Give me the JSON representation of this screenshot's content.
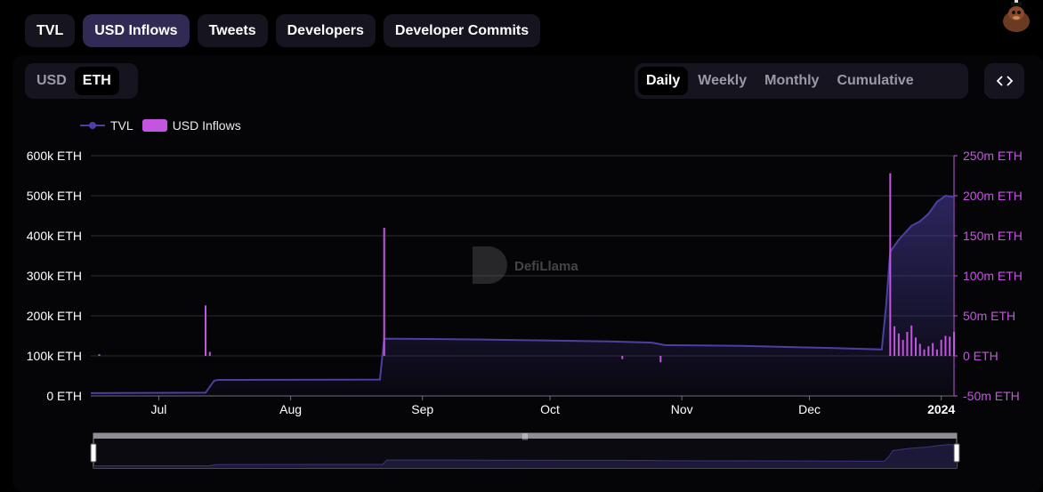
{
  "top_tabs": [
    {
      "label": "TVL",
      "active": false
    },
    {
      "label": "USD Inflows",
      "active": true
    },
    {
      "label": "Tweets",
      "active": false
    },
    {
      "label": "Developers",
      "active": false
    },
    {
      "label": "Developer Commits",
      "active": false
    }
  ],
  "denomination": {
    "options": [
      "USD",
      "ETH"
    ],
    "selected": "ETH"
  },
  "periods": {
    "options": [
      "Daily",
      "Weekly",
      "Monthly",
      "Cumulative"
    ],
    "selected": "Daily"
  },
  "embed_icon": "code-brackets-icon",
  "avatar_icon": "user-avatar-icon",
  "watermark": "DefiLlama",
  "colors": {
    "tvl": "#4c3fa3",
    "inflows": "#c455e0",
    "grid": "#2a2a33",
    "axis_left": "#ffffff",
    "axis_right": "#c455e0"
  },
  "chart_data": {
    "type": "line+bar",
    "legend": [
      {
        "name": "TVL",
        "marker": "line"
      },
      {
        "name": "USD Inflows",
        "marker": "bar"
      }
    ],
    "legend_position": "top-left",
    "grid": true,
    "x_range": [
      "2023-06-15",
      "2024-01-04"
    ],
    "x_ticks": [
      {
        "date": "2023-07-01",
        "label": "Jul",
        "bold": false
      },
      {
        "date": "2023-08-01",
        "label": "Aug",
        "bold": false
      },
      {
        "date": "2023-09-01",
        "label": "Sep",
        "bold": false
      },
      {
        "date": "2023-10-01",
        "label": "Oct",
        "bold": false
      },
      {
        "date": "2023-11-01",
        "label": "Nov",
        "bold": false
      },
      {
        "date": "2023-12-01",
        "label": "Dec",
        "bold": false
      },
      {
        "date": "2024-01-01",
        "label": "2024",
        "bold": true
      }
    ],
    "left_axis": {
      "unit": "ETH",
      "ylim": [
        0,
        600000
      ],
      "ticks": [
        {
          "v": 0,
          "label": "0 ETH"
        },
        {
          "v": 100000,
          "label": "100k ETH"
        },
        {
          "v": 200000,
          "label": "200k ETH"
        },
        {
          "v": 300000,
          "label": "300k ETH"
        },
        {
          "v": 400000,
          "label": "400k ETH"
        },
        {
          "v": 500000,
          "label": "500k ETH"
        },
        {
          "v": 600000,
          "label": "600k ETH"
        }
      ]
    },
    "right_axis": {
      "unit": "ETH",
      "ylim": [
        -50000000,
        250000000
      ],
      "ticks": [
        {
          "v": -50000000,
          "label": "-50m ETH"
        },
        {
          "v": 0,
          "label": "0 ETH"
        },
        {
          "v": 50000000,
          "label": "50m ETH"
        },
        {
          "v": 100000000,
          "label": "100m ETH"
        },
        {
          "v": 150000000,
          "label": "150m ETH"
        },
        {
          "v": 200000000,
          "label": "200m ETH"
        },
        {
          "v": 250000000,
          "label": "250m ETH"
        }
      ]
    },
    "series": [
      {
        "name": "TVL",
        "type": "area",
        "axis": "left",
        "points": [
          [
            "2023-06-15",
            7000
          ],
          [
            "2023-07-12",
            8000
          ],
          [
            "2023-07-14",
            38000
          ],
          [
            "2023-07-15",
            40000
          ],
          [
            "2023-08-22",
            41000
          ],
          [
            "2023-08-23",
            143000
          ],
          [
            "2023-09-15",
            141000
          ],
          [
            "2023-10-15",
            136000
          ],
          [
            "2023-10-25",
            133000
          ],
          [
            "2023-10-28",
            127000
          ],
          [
            "2023-11-15",
            125000
          ],
          [
            "2023-12-05",
            120000
          ],
          [
            "2023-12-18",
            116000
          ],
          [
            "2023-12-19",
            220000
          ],
          [
            "2023-12-20",
            360000
          ],
          [
            "2023-12-22",
            390000
          ],
          [
            "2023-12-25",
            425000
          ],
          [
            "2023-12-27",
            436000
          ],
          [
            "2023-12-29",
            455000
          ],
          [
            "2023-12-31",
            485000
          ],
          [
            "2024-01-02",
            500000
          ],
          [
            "2024-01-04",
            497000
          ]
        ]
      },
      {
        "name": "USD Inflows",
        "type": "bar",
        "axis": "right",
        "points": [
          [
            "2023-06-17",
            2000000
          ],
          [
            "2023-07-12",
            63000000
          ],
          [
            "2023-07-13",
            5000000
          ],
          [
            "2023-08-23",
            160000000
          ],
          [
            "2023-10-18",
            -4000000
          ],
          [
            "2023-10-27",
            -8000000
          ],
          [
            "2023-12-20",
            228000000
          ],
          [
            "2023-12-21",
            37000000
          ],
          [
            "2023-12-22",
            28000000
          ],
          [
            "2023-12-23",
            20000000
          ],
          [
            "2023-12-24",
            30000000
          ],
          [
            "2023-12-25",
            38000000
          ],
          [
            "2023-12-26",
            23000000
          ],
          [
            "2023-12-27",
            15000000
          ],
          [
            "2023-12-28",
            8000000
          ],
          [
            "2023-12-29",
            12000000
          ],
          [
            "2023-12-30",
            16000000
          ],
          [
            "2023-12-31",
            8000000
          ],
          [
            "2024-01-01",
            20000000
          ],
          [
            "2024-01-02",
            25000000
          ],
          [
            "2024-01-03",
            24000000
          ],
          [
            "2024-01-04",
            30000000
          ]
        ]
      }
    ]
  }
}
